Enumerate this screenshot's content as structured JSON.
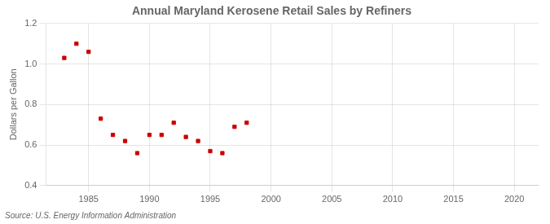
{
  "chart_data": {
    "type": "scatter",
    "title": "Annual Maryland Kerosene Retail Sales by Refiners",
    "ylabel": "Dollars per Gallon",
    "annotations": [
      "Source: U.S. Energy Information Administration"
    ],
    "x": [
      1983,
      1984,
      1985,
      1986,
      1987,
      1988,
      1989,
      1990,
      1991,
      1992,
      1993,
      1994,
      1995,
      1996,
      1997,
      1998
    ],
    "values": [
      1.03,
      1.1,
      1.06,
      0.73,
      0.65,
      0.62,
      0.56,
      0.65,
      0.65,
      0.71,
      0.64,
      0.62,
      0.57,
      0.56,
      0.69,
      0.71
    ],
    "color": "#cc0000",
    "marker": "square",
    "xlim": [
      1981.5,
      2022
    ],
    "xticks": [
      1985,
      1990,
      1995,
      2000,
      2005,
      2010,
      2015,
      2020
    ],
    "ylim": [
      0.4,
      1.2
    ],
    "yticks": [
      0.4,
      0.6,
      0.8,
      {
        "value": 1.0,
        "label": "1.0"
      },
      1.2
    ],
    "grid": true
  }
}
